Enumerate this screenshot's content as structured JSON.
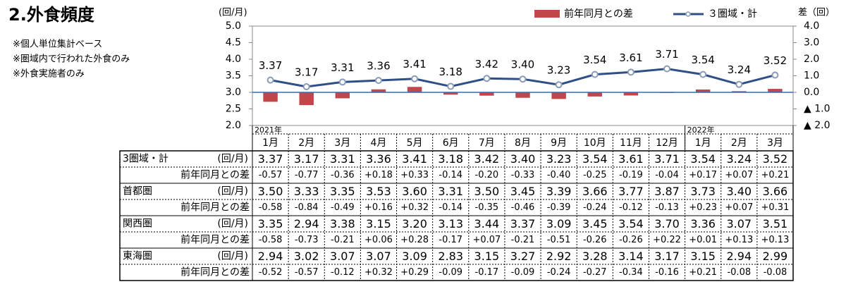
{
  "title": "2.外食頻度",
  "notes": [
    "※個人単位集計ベース",
    "※圏域内で行われた外食のみ",
    "※外食実施者のみ"
  ],
  "chart_data": {
    "type": "bar-line",
    "ylabel": "(回/月)",
    "y2label": "差（回）",
    "categories": [
      "1月",
      "2月",
      "3月",
      "4月",
      "5月",
      "6月",
      "7月",
      "8月",
      "9月",
      "10月",
      "11月",
      "12月",
      "1月",
      "2月",
      "3月"
    ],
    "year_labels": [
      {
        "index": 0,
        "label": "2021年"
      },
      {
        "index": 12,
        "label": "2022年"
      }
    ],
    "ylim": [
      2.0,
      5.0
    ],
    "yticks": [
      {
        "value": 2,
        "label": "2.0"
      },
      {
        "value": 2.5,
        "label": "2.5"
      },
      {
        "value": 3,
        "label": "3.0"
      },
      {
        "value": 3.5,
        "label": "3.5"
      },
      {
        "value": 4,
        "label": "4.0"
      },
      {
        "value": 4.5,
        "label": "4.5"
      },
      {
        "value": 5,
        "label": "5.0"
      }
    ],
    "y2lim": [
      -2.0,
      4.0
    ],
    "y2ticks": [
      {
        "value": -2,
        "label": "▲ 2.0"
      },
      {
        "value": -1,
        "label": "▲ 1.0"
      },
      {
        "value": 0,
        "label": "0.0"
      },
      {
        "value": 1,
        "label": "1.0"
      },
      {
        "value": 2,
        "label": "2.0"
      },
      {
        "value": 3,
        "label": "3.0"
      },
      {
        "value": 4,
        "label": "4.0"
      }
    ],
    "legend": "top-right",
    "series": [
      {
        "name": "前年同月との差",
        "type": "bar",
        "axis": "y2",
        "color": "#c0484a",
        "values": [
          -0.57,
          -0.77,
          -0.36,
          0.18,
          0.33,
          -0.14,
          -0.2,
          -0.33,
          -0.4,
          -0.25,
          -0.19,
          -0.04,
          0.17,
          0.07,
          0.21
        ]
      },
      {
        "name": "３圏域・計",
        "type": "line",
        "color": "#2f4f86",
        "values": [
          3.37,
          3.17,
          3.31,
          3.36,
          3.41,
          3.18,
          3.42,
          3.4,
          3.23,
          3.54,
          3.61,
          3.71,
          3.54,
          3.24,
          3.52
        ],
        "value_labels": [
          "3.37",
          "3.17",
          "3.31",
          "3.36",
          "3.41",
          "3.18",
          "3.42",
          "3.40",
          "3.23",
          "3.54",
          "3.61",
          "3.71",
          "3.54",
          "3.24",
          "3.52"
        ]
      }
    ]
  },
  "table": {
    "rows": [
      {
        "name": "3圏域・計",
        "unit": "(回/月)",
        "diff_label": "前年同月との差",
        "values": [
          "3.37",
          "3.17",
          "3.31",
          "3.36",
          "3.41",
          "3.18",
          "3.42",
          "3.40",
          "3.23",
          "3.54",
          "3.61",
          "3.71",
          "3.54",
          "3.24",
          "3.52"
        ],
        "diffs": [
          "-0.57",
          "-0.77",
          "-0.36",
          "+0.18",
          "+0.33",
          "-0.14",
          "-0.20",
          "-0.33",
          "-0.40",
          "-0.25",
          "-0.19",
          "-0.04",
          "+0.17",
          "+0.07",
          "+0.21"
        ]
      },
      {
        "name": "首都圏",
        "unit": "(回/月)",
        "diff_label": "前年同月との差",
        "values": [
          "3.50",
          "3.33",
          "3.35",
          "3.53",
          "3.60",
          "3.31",
          "3.50",
          "3.45",
          "3.39",
          "3.66",
          "3.77",
          "3.87",
          "3.73",
          "3.40",
          "3.66"
        ],
        "diffs": [
          "-0.58",
          "-0.84",
          "-0.49",
          "+0.16",
          "+0.32",
          "-0.14",
          "-0.35",
          "-0.46",
          "-0.39",
          "-0.24",
          "-0.12",
          "-0.13",
          "+0.23",
          "+0.07",
          "+0.31"
        ]
      },
      {
        "name": "関西圏",
        "unit": "(回/月)",
        "diff_label": "前年同月との差",
        "values": [
          "3.35",
          "2.94",
          "3.38",
          "3.15",
          "3.20",
          "3.13",
          "3.44",
          "3.37",
          "3.09",
          "3.45",
          "3.54",
          "3.70",
          "3.36",
          "3.07",
          "3.51"
        ],
        "diffs": [
          "-0.58",
          "-0.73",
          "-0.21",
          "+0.06",
          "+0.28",
          "-0.17",
          "+0.07",
          "-0.21",
          "-0.51",
          "-0.26",
          "-0.26",
          "+0.22",
          "+0.01",
          "+0.13",
          "+0.13"
        ]
      },
      {
        "name": "東海圏",
        "unit": "(回/月)",
        "diff_label": "前年同月との差",
        "values": [
          "2.94",
          "3.02",
          "3.07",
          "3.07",
          "3.09",
          "2.83",
          "3.15",
          "3.27",
          "2.92",
          "3.28",
          "3.14",
          "3.17",
          "3.15",
          "2.94",
          "2.99"
        ],
        "diffs": [
          "-0.52",
          "-0.57",
          "-0.12",
          "+0.32",
          "+0.29",
          "-0.09",
          "-0.17",
          "-0.09",
          "-0.24",
          "-0.27",
          "-0.34",
          "-0.16",
          "+0.21",
          "-0.08",
          "-0.08"
        ]
      }
    ]
  }
}
